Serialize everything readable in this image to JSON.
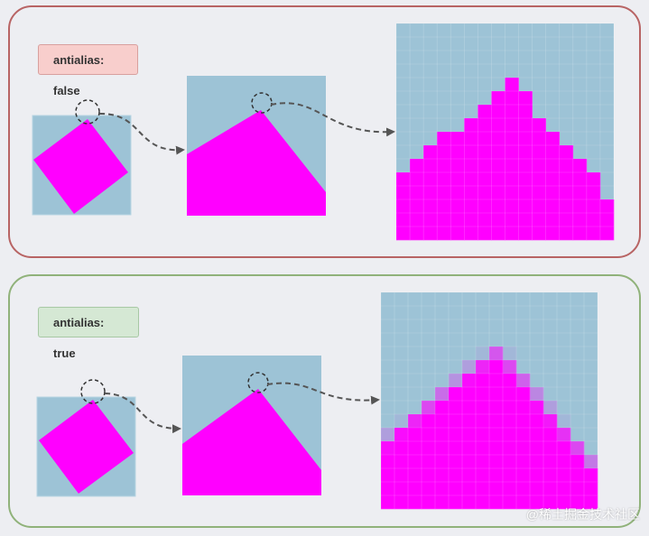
{
  "panels": {
    "aliased": {
      "label": "antialias: false"
    },
    "antialiased": {
      "label": "antialias: true"
    }
  },
  "colors": {
    "background": "#9dc3d6",
    "fill": "#ff00ff",
    "arrow": "#555555"
  },
  "watermark": "@稀土掘金技术社区"
}
